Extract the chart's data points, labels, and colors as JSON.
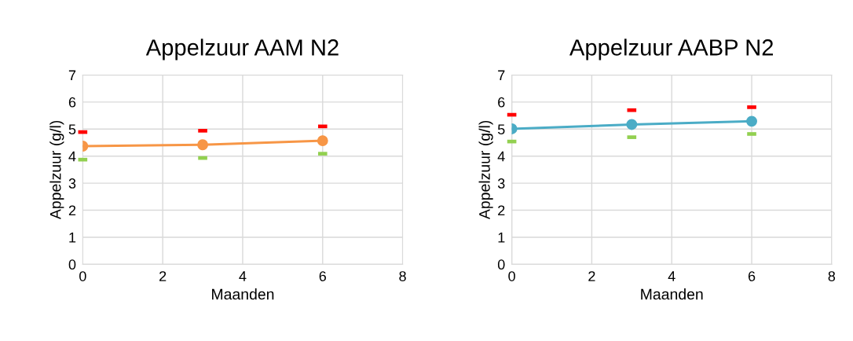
{
  "chart_data": [
    {
      "type": "line",
      "title": "Appelzuur AAM N2",
      "xlabel": "Maanden",
      "ylabel": "Appelzuur (g/l)",
      "x": [
        0,
        3,
        6
      ],
      "xlim": [
        0,
        8
      ],
      "xticks": [
        0,
        2,
        4,
        6,
        8
      ],
      "ylim": [
        0,
        7
      ],
      "yticks": [
        0,
        1,
        2,
        3,
        4,
        5,
        6,
        7
      ],
      "grid": true,
      "legend": false,
      "series": [
        {
          "type": "line",
          "marker": "circle",
          "color": "#f79646",
          "values": [
            4.37,
            4.42,
            4.57
          ]
        },
        {
          "type": "scatter",
          "color": "#ff0000",
          "values": [
            4.89,
            4.94,
            5.1
          ]
        },
        {
          "type": "scatter",
          "color": "#92d050",
          "values": [
            3.87,
            3.93,
            4.09
          ]
        }
      ]
    },
    {
      "type": "line",
      "title": "Appelzuur AABP N2",
      "xlabel": "Maanden",
      "ylabel": "Appelzuur (g/l)",
      "x": [
        0,
        3,
        6
      ],
      "xlim": [
        0,
        8
      ],
      "xticks": [
        0,
        2,
        4,
        6,
        8
      ],
      "ylim": [
        0,
        7
      ],
      "yticks": [
        0,
        1,
        2,
        3,
        4,
        5,
        6,
        7
      ],
      "grid": true,
      "legend": false,
      "series": [
        {
          "type": "line",
          "marker": "circle",
          "color": "#4bacc6",
          "values": [
            5.01,
            5.17,
            5.29
          ]
        },
        {
          "type": "scatter",
          "color": "#ff0000",
          "values": [
            5.53,
            5.7,
            5.81
          ]
        },
        {
          "type": "scatter",
          "color": "#92d050",
          "values": [
            4.54,
            4.7,
            4.82
          ]
        }
      ]
    }
  ]
}
